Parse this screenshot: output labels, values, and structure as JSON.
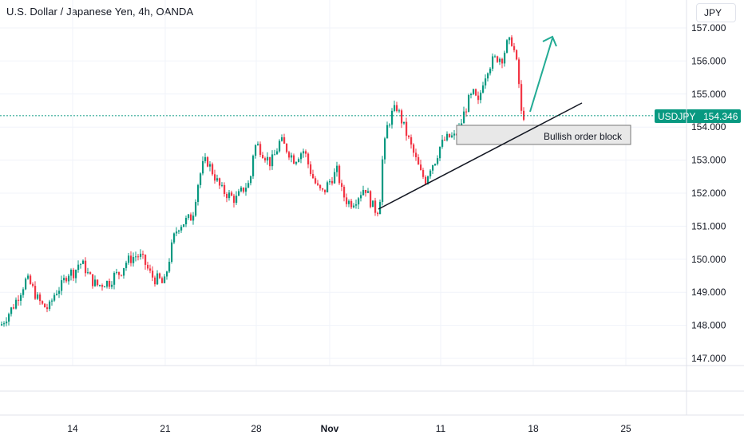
{
  "header": {
    "title": "U.S. Dollar / Japanese Yen, 4h, OANDA",
    "currency_button": "JPY"
  },
  "price_tag": {
    "symbol": "USDJPY",
    "price": "154.346"
  },
  "annotation": {
    "order_block_label": "Bullish order block"
  },
  "colors": {
    "up": "#089981",
    "down": "#f23645",
    "tag_bg": "#089981",
    "grid": "#f0f3fa",
    "arrow": "#22ab94"
  },
  "chart_data": {
    "type": "candlestick",
    "symbol": "USDJPY",
    "exchange": "OANDA",
    "timeframe": "4h",
    "y_ticks": [
      "147.000",
      "148.000",
      "149.000",
      "150.000",
      "151.000",
      "152.000",
      "153.000",
      "154.000",
      "155.000",
      "156.000",
      "157.000"
    ],
    "x_ticks": [
      {
        "label": "14",
        "bold": false
      },
      {
        "label": "21",
        "bold": false
      },
      {
        "label": "28",
        "bold": false
      },
      {
        "label": "Nov",
        "bold": true
      },
      {
        "label": "11",
        "bold": false
      },
      {
        "label": "18",
        "bold": false
      },
      {
        "label": "25",
        "bold": false
      }
    ],
    "ylim": [
      146.5,
      157.3
    ],
    "last_price": 154.346,
    "close_path": [
      [
        0,
        148.0
      ],
      [
        8,
        148.3
      ],
      [
        16,
        148.6
      ],
      [
        24,
        149.0
      ],
      [
        32,
        149.4
      ],
      [
        38,
        149.2
      ],
      [
        46,
        148.8
      ],
      [
        52,
        148.6
      ],
      [
        60,
        148.5
      ],
      [
        68,
        149.0
      ],
      [
        76,
        149.2
      ],
      [
        84,
        149.6
      ],
      [
        92,
        149.6
      ],
      [
        98,
        149.9
      ],
      [
        104,
        149.8
      ],
      [
        110,
        149.5
      ],
      [
        116,
        149.3
      ],
      [
        122,
        149.2
      ],
      [
        130,
        149.3
      ],
      [
        136,
        149.3
      ],
      [
        142,
        149.5
      ],
      [
        150,
        149.6
      ],
      [
        156,
        149.9
      ],
      [
        162,
        150.0
      ],
      [
        168,
        150.1
      ],
      [
        174,
        150.1
      ],
      [
        180,
        149.9
      ],
      [
        186,
        149.6
      ],
      [
        192,
        149.4
      ],
      [
        198,
        149.4
      ],
      [
        204,
        149.2
      ],
      [
        210,
        149.9
      ],
      [
        216,
        150.6
      ],
      [
        222,
        151.0
      ],
      [
        228,
        151.1
      ],
      [
        234,
        151.2
      ],
      [
        240,
        151.3
      ],
      [
        246,
        152.2
      ],
      [
        252,
        152.8
      ],
      [
        258,
        153.0
      ],
      [
        264,
        152.7
      ],
      [
        270,
        152.4
      ],
      [
        276,
        152.1
      ],
      [
        282,
        152.0
      ],
      [
        288,
        151.9
      ],
      [
        294,
        151.8
      ],
      [
        300,
        152.0
      ],
      [
        306,
        152.2
      ],
      [
        312,
        152.3
      ],
      [
        316,
        153.2
      ],
      [
        320,
        153.5
      ],
      [
        326,
        153.3
      ],
      [
        332,
        153.1
      ],
      [
        338,
        152.9
      ],
      [
        344,
        153.2
      ],
      [
        350,
        153.6
      ],
      [
        356,
        153.4
      ],
      [
        362,
        153.2
      ],
      [
        368,
        153.0
      ],
      [
        374,
        153.2
      ],
      [
        380,
        153.3
      ],
      [
        386,
        152.8
      ],
      [
        392,
        152.4
      ],
      [
        398,
        152.1
      ],
      [
        404,
        152.0
      ],
      [
        410,
        152.3
      ],
      [
        416,
        152.5
      ],
      [
        422,
        152.7
      ],
      [
        426,
        152.1
      ],
      [
        432,
        151.8
      ],
      [
        438,
        151.7
      ],
      [
        444,
        151.8
      ],
      [
        450,
        152.0
      ],
      [
        456,
        152.2
      ],
      [
        462,
        151.8
      ],
      [
        468,
        151.5
      ],
      [
        474,
        151.5
      ],
      [
        478,
        153.0
      ],
      [
        484,
        154.0
      ],
      [
        490,
        154.4
      ],
      [
        496,
        154.6
      ],
      [
        502,
        154.2
      ],
      [
        508,
        153.8
      ],
      [
        514,
        153.4
      ],
      [
        520,
        153.0
      ],
      [
        526,
        152.6
      ],
      [
        532,
        152.4
      ],
      [
        538,
        152.8
      ],
      [
        544,
        153.0
      ],
      [
        550,
        153.4
      ],
      [
        556,
        153.6
      ],
      [
        562,
        153.7
      ],
      [
        568,
        153.7
      ],
      [
        574,
        153.9
      ],
      [
        580,
        154.4
      ],
      [
        586,
        154.8
      ],
      [
        592,
        155.0
      ],
      [
        598,
        154.7
      ],
      [
        604,
        155.4
      ],
      [
        610,
        155.8
      ],
      [
        616,
        156.0
      ],
      [
        622,
        156.1
      ],
      [
        628,
        156.1
      ],
      [
        634,
        156.5
      ],
      [
        640,
        156.6
      ],
      [
        644,
        156.2
      ],
      [
        648,
        155.6
      ],
      [
        652,
        154.4
      ],
      [
        656,
        154.35
      ]
    ]
  }
}
